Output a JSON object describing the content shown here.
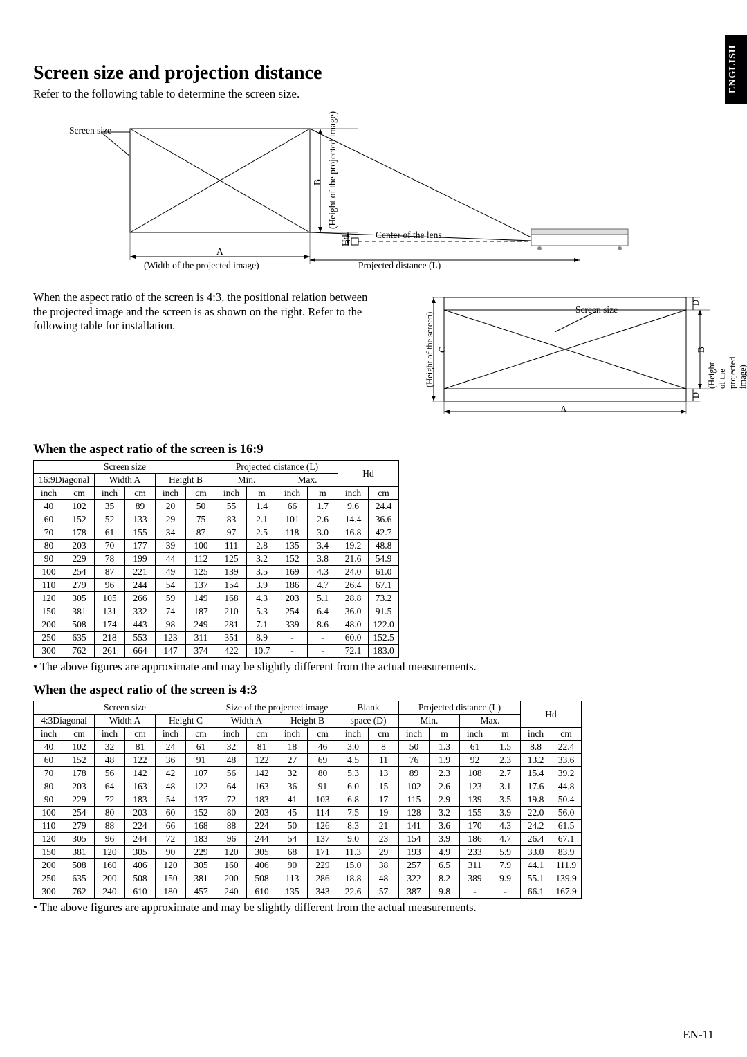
{
  "side_tab": "ENGLISH",
  "heading": "Screen size and projection distance",
  "subhead": "Refer to the following table to determine the screen size.",
  "diag1": {
    "screen_size": "Screen size",
    "height_proj": "(Height of the projected image)",
    "B": "B",
    "Hd": "Hd",
    "center_lens": "Center of the lens",
    "A": "A",
    "width_proj": "(Width of the projected image)",
    "proj_dist": "Projected distance (L)"
  },
  "para": "When the aspect ratio of the screen is 4:3, the positional relation between the projected image and the screen is as shown on the right. Refer to the following table for installation.",
  "diag2": {
    "D": "D",
    "screen_size": "Screen size",
    "height_screen": "(Height of the screen)",
    "C": "C",
    "B": "B",
    "height_proj": "(Height of the projected image)",
    "A": "A"
  },
  "h2_169": "When the aspect ratio of the screen is 16:9",
  "h2_43": "When the aspect ratio of the screen is 4:3",
  "bullet_note": "The above figures are approximate and may be slightly different from the actual measurements.",
  "page_num": "EN-11",
  "table_169": {
    "group_headers": [
      "Screen size",
      "Projected distance (L)",
      "Hd"
    ],
    "sub_headers": [
      "16:9Diagonal",
      "Width A",
      "Height B",
      "Min.",
      "Max.",
      "Hd"
    ],
    "unit_row": [
      "inch",
      "cm",
      "inch",
      "cm",
      "inch",
      "cm",
      "inch",
      "m",
      "inch",
      "m",
      "inch",
      "cm"
    ],
    "rows": [
      [
        "40",
        "102",
        "35",
        "89",
        "20",
        "50",
        "55",
        "1.4",
        "66",
        "1.7",
        "9.6",
        "24.4"
      ],
      [
        "60",
        "152",
        "52",
        "133",
        "29",
        "75",
        "83",
        "2.1",
        "101",
        "2.6",
        "14.4",
        "36.6"
      ],
      [
        "70",
        "178",
        "61",
        "155",
        "34",
        "87",
        "97",
        "2.5",
        "118",
        "3.0",
        "16.8",
        "42.7"
      ],
      [
        "80",
        "203",
        "70",
        "177",
        "39",
        "100",
        "111",
        "2.8",
        "135",
        "3.4",
        "19.2",
        "48.8"
      ],
      [
        "90",
        "229",
        "78",
        "199",
        "44",
        "112",
        "125",
        "3.2",
        "152",
        "3.8",
        "21.6",
        "54.9"
      ],
      [
        "100",
        "254",
        "87",
        "221",
        "49",
        "125",
        "139",
        "3.5",
        "169",
        "4.3",
        "24.0",
        "61.0"
      ],
      [
        "110",
        "279",
        "96",
        "244",
        "54",
        "137",
        "154",
        "3.9",
        "186",
        "4.7",
        "26.4",
        "67.1"
      ],
      [
        "120",
        "305",
        "105",
        "266",
        "59",
        "149",
        "168",
        "4.3",
        "203",
        "5.1",
        "28.8",
        "73.2"
      ],
      [
        "150",
        "381",
        "131",
        "332",
        "74",
        "187",
        "210",
        "5.3",
        "254",
        "6.4",
        "36.0",
        "91.5"
      ],
      [
        "200",
        "508",
        "174",
        "443",
        "98",
        "249",
        "281",
        "7.1",
        "339",
        "8.6",
        "48.0",
        "122.0"
      ],
      [
        "250",
        "635",
        "218",
        "553",
        "123",
        "311",
        "351",
        "8.9",
        "-",
        "-",
        "60.0",
        "152.5"
      ],
      [
        "300",
        "762",
        "261",
        "664",
        "147",
        "374",
        "422",
        "10.7",
        "-",
        "-",
        "72.1",
        "183.0"
      ]
    ]
  },
  "table_43": {
    "group_headers": [
      "Screen size",
      "Size of the projected image",
      "Blank",
      "Projected distance (L)",
      "Hd"
    ],
    "sub_headers": [
      "4:3Diagonal",
      "Width  A",
      "Height C",
      "Width  A",
      "Height B",
      "space (D)",
      "Min.",
      "Max.",
      "Hd"
    ],
    "unit_row": [
      "inch",
      "cm",
      "inch",
      "cm",
      "inch",
      "cm",
      "inch",
      "cm",
      "inch",
      "cm",
      "inch",
      "cm",
      "inch",
      "m",
      "inch",
      "m",
      "inch",
      "cm"
    ],
    "rows": [
      [
        "40",
        "102",
        "32",
        "81",
        "24",
        "61",
        "32",
        "81",
        "18",
        "46",
        "3.0",
        "8",
        "50",
        "1.3",
        "61",
        "1.5",
        "8.8",
        "22.4"
      ],
      [
        "60",
        "152",
        "48",
        "122",
        "36",
        "91",
        "48",
        "122",
        "27",
        "69",
        "4.5",
        "11",
        "76",
        "1.9",
        "92",
        "2.3",
        "13.2",
        "33.6"
      ],
      [
        "70",
        "178",
        "56",
        "142",
        "42",
        "107",
        "56",
        "142",
        "32",
        "80",
        "5.3",
        "13",
        "89",
        "2.3",
        "108",
        "2.7",
        "15.4",
        "39.2"
      ],
      [
        "80",
        "203",
        "64",
        "163",
        "48",
        "122",
        "64",
        "163",
        "36",
        "91",
        "6.0",
        "15",
        "102",
        "2.6",
        "123",
        "3.1",
        "17.6",
        "44.8"
      ],
      [
        "90",
        "229",
        "72",
        "183",
        "54",
        "137",
        "72",
        "183",
        "41",
        "103",
        "6.8",
        "17",
        "115",
        "2.9",
        "139",
        "3.5",
        "19.8",
        "50.4"
      ],
      [
        "100",
        "254",
        "80",
        "203",
        "60",
        "152",
        "80",
        "203",
        "45",
        "114",
        "7.5",
        "19",
        "128",
        "3.2",
        "155",
        "3.9",
        "22.0",
        "56.0"
      ],
      [
        "110",
        "279",
        "88",
        "224",
        "66",
        "168",
        "88",
        "224",
        "50",
        "126",
        "8.3",
        "21",
        "141",
        "3.6",
        "170",
        "4.3",
        "24.2",
        "61.5"
      ],
      [
        "120",
        "305",
        "96",
        "244",
        "72",
        "183",
        "96",
        "244",
        "54",
        "137",
        "9.0",
        "23",
        "154",
        "3.9",
        "186",
        "4.7",
        "26.4",
        "67.1"
      ],
      [
        "150",
        "381",
        "120",
        "305",
        "90",
        "229",
        "120",
        "305",
        "68",
        "171",
        "11.3",
        "29",
        "193",
        "4.9",
        "233",
        "5.9",
        "33.0",
        "83.9"
      ],
      [
        "200",
        "508",
        "160",
        "406",
        "120",
        "305",
        "160",
        "406",
        "90",
        "229",
        "15.0",
        "38",
        "257",
        "6.5",
        "311",
        "7.9",
        "44.1",
        "111.9"
      ],
      [
        "250",
        "635",
        "200",
        "508",
        "150",
        "381",
        "200",
        "508",
        "113",
        "286",
        "18.8",
        "48",
        "322",
        "8.2",
        "389",
        "9.9",
        "55.1",
        "139.9"
      ],
      [
        "300",
        "762",
        "240",
        "610",
        "180",
        "457",
        "240",
        "610",
        "135",
        "343",
        "22.6",
        "57",
        "387",
        "9.8",
        "-",
        "-",
        "66.1",
        "167.9"
      ]
    ]
  }
}
